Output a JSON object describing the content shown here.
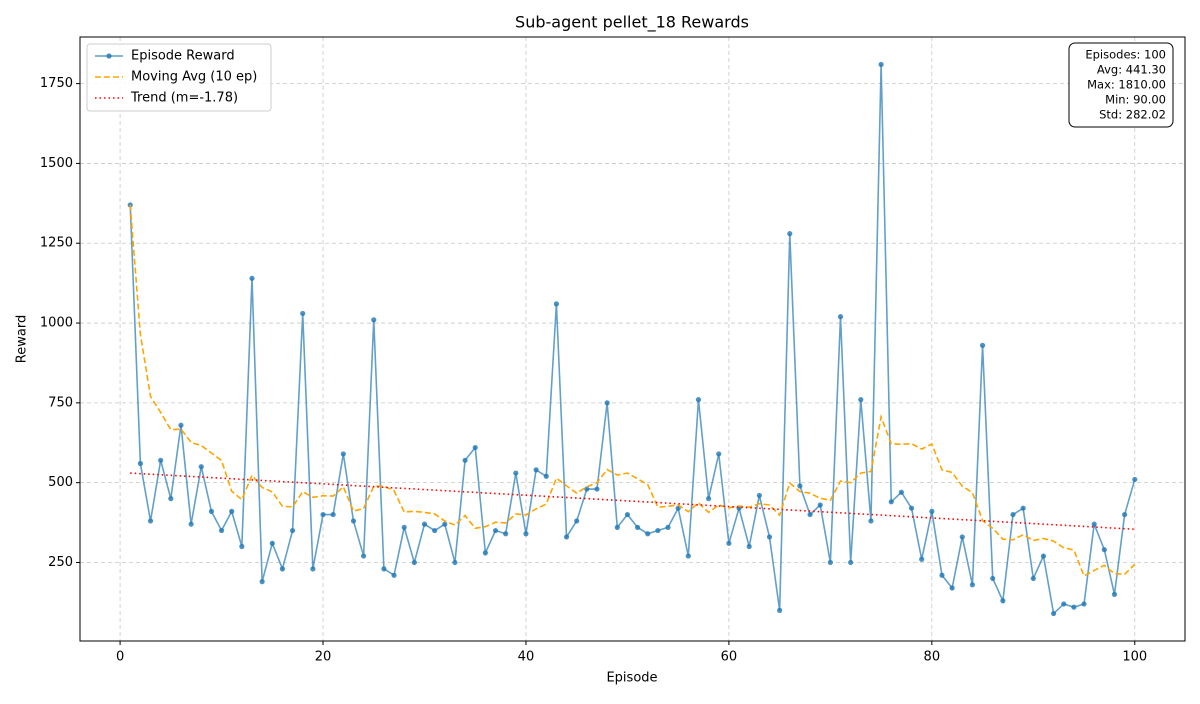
{
  "chart_data": {
    "type": "line",
    "title": "Sub-agent pellet_18 Rewards",
    "xlabel": "Episode",
    "ylabel": "Reward",
    "x": [
      1,
      2,
      3,
      4,
      5,
      6,
      7,
      8,
      9,
      10,
      11,
      12,
      13,
      14,
      15,
      16,
      17,
      18,
      19,
      20,
      21,
      22,
      23,
      24,
      25,
      26,
      27,
      28,
      29,
      30,
      31,
      32,
      33,
      34,
      35,
      36,
      37,
      38,
      39,
      40,
      41,
      42,
      43,
      44,
      45,
      46,
      47,
      48,
      49,
      50,
      51,
      52,
      53,
      54,
      55,
      56,
      57,
      58,
      59,
      60,
      61,
      62,
      63,
      64,
      65,
      66,
      67,
      68,
      69,
      70,
      71,
      72,
      73,
      74,
      75,
      76,
      77,
      78,
      79,
      80,
      81,
      82,
      83,
      84,
      85,
      86,
      87,
      88,
      89,
      90,
      91,
      92,
      93,
      94,
      95,
      96,
      97,
      98,
      99,
      100
    ],
    "series": [
      {
        "name": "Episode Reward",
        "color": "#1f77b4",
        "style": "solid",
        "markers": true,
        "values": [
          1370,
          560,
          380,
          570,
          450,
          680,
          370,
          550,
          410,
          350,
          410,
          300,
          1140,
          190,
          310,
          230,
          350,
          1030,
          230,
          400,
          400,
          590,
          380,
          270,
          1010,
          230,
          210,
          360,
          250,
          370,
          350,
          370,
          250,
          570,
          610,
          280,
          350,
          340,
          530,
          340,
          540,
          520,
          1060,
          330,
          380,
          480,
          480,
          750,
          360,
          400,
          360,
          340,
          350,
          360,
          420,
          270,
          760,
          450,
          590,
          310,
          420,
          300,
          460,
          330,
          100,
          1280,
          490,
          400,
          430,
          250,
          1020,
          250,
          760,
          380,
          1810,
          440,
          470,
          420,
          260,
          410,
          210,
          170,
          330,
          180,
          930,
          200,
          130,
          400,
          420,
          200,
          270,
          90,
          120,
          110,
          120,
          370,
          290,
          150,
          400,
          510
        ]
      },
      {
        "name": "Moving Avg (10 ep)",
        "color": "#ffa500",
        "style": "dashed",
        "markers": false,
        "values": [
          1370,
          965,
          770,
          720,
          666,
          668,
          626,
          616,
          593,
          569,
          473,
          447,
          523,
          485,
          471,
          426,
          424,
          472,
          454,
          459,
          458,
          487,
          411,
          419,
          489,
          489,
          475,
          408,
          410,
          407,
          402,
          380,
          367,
          397,
          357,
          362,
          376,
          374,
          402,
          399,
          418,
          433,
          514,
          490,
          467,
          487,
          500,
          541,
          524,
          530,
          512,
          494,
          423,
          426,
          430,
          409,
          437,
          407,
          430,
          421,
          427,
          423,
          434,
          430,
          398,
          499,
          472,
          467,
          451,
          445,
          505,
          500,
          530,
          535,
          706,
          622,
          620,
          622,
          605,
          621,
          540,
          532,
          489,
          469,
          381,
          357,
          323,
          321,
          337,
          319,
          325,
          317,
          296,
          289,
          208,
          225,
          241,
          215,
          213,
          244
        ]
      },
      {
        "name": "Trend (m=-1.78)",
        "color": "#ff0000",
        "style": "dotted",
        "markers": false,
        "x": [
          1,
          100
        ],
        "values": [
          530,
          354
        ]
      }
    ],
    "xlim": [
      -3.95,
      104.95
    ],
    "ylim": [
      4,
      1896
    ],
    "xticks": [
      0,
      20,
      40,
      60,
      80,
      100
    ],
    "yticks": [
      250,
      500,
      750,
      1000,
      1250,
      1500,
      1750
    ],
    "grid": true,
    "legend": "upper left",
    "stats_box": [
      "Episodes: 100",
      "Avg: 441.30",
      "Max: 1810.00",
      "Min: 90.00",
      "Std: 282.02"
    ]
  }
}
